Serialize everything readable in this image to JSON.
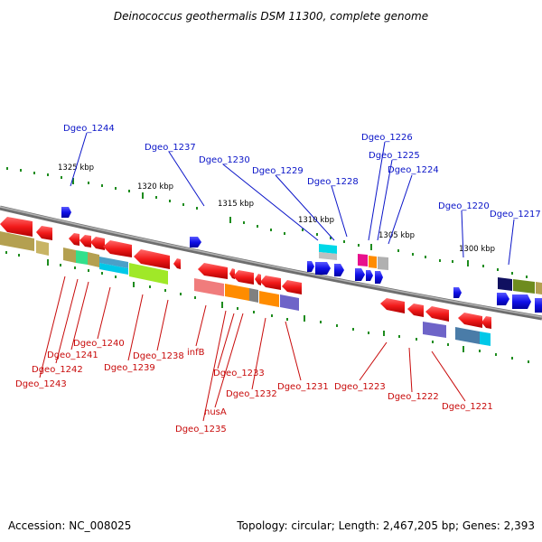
{
  "title": "Deinococcus geothermalis DSM 11300, complete genome",
  "footer": {
    "accession": "Accession: NC_008025",
    "topology": "Topology: circular; Length: 2,467,205 bp; Genes: 2,393"
  },
  "scale_labels": [
    "1325 kbp",
    "1320 kbp",
    "1315 kbp",
    "1310 kbp",
    "1305 kbp",
    "1300 kbp"
  ],
  "genes_top": [
    "Dgeo_1244",
    "Dgeo_1237",
    "Dgeo_1230",
    "Dgeo_1229",
    "Dgeo_1228",
    "Dgeo_1226",
    "Dgeo_1225",
    "Dgeo_1224",
    "Dgeo_1220",
    "Dgeo_1217"
  ],
  "genes_bottom": [
    "Dgeo_1240",
    "Dgeo_1241",
    "Dgeo_1242",
    "Dgeo_1243",
    "Dgeo_1239",
    "Dgeo_1238",
    "infB",
    "Dgeo_1233",
    "Dgeo_1232",
    "nusA",
    "Dgeo_1235",
    "Dgeo_1231",
    "Dgeo_1223",
    "Dgeo_1222",
    "Dgeo_1221"
  ],
  "colors": {
    "forward_strand": "#1010e0",
    "reverse_strand": "#e81010",
    "backbone": "#8c8c8c",
    "tick": "#1e8c1e",
    "label_forward": "#0a14c8",
    "label_reverse": "#c80a0a"
  }
}
